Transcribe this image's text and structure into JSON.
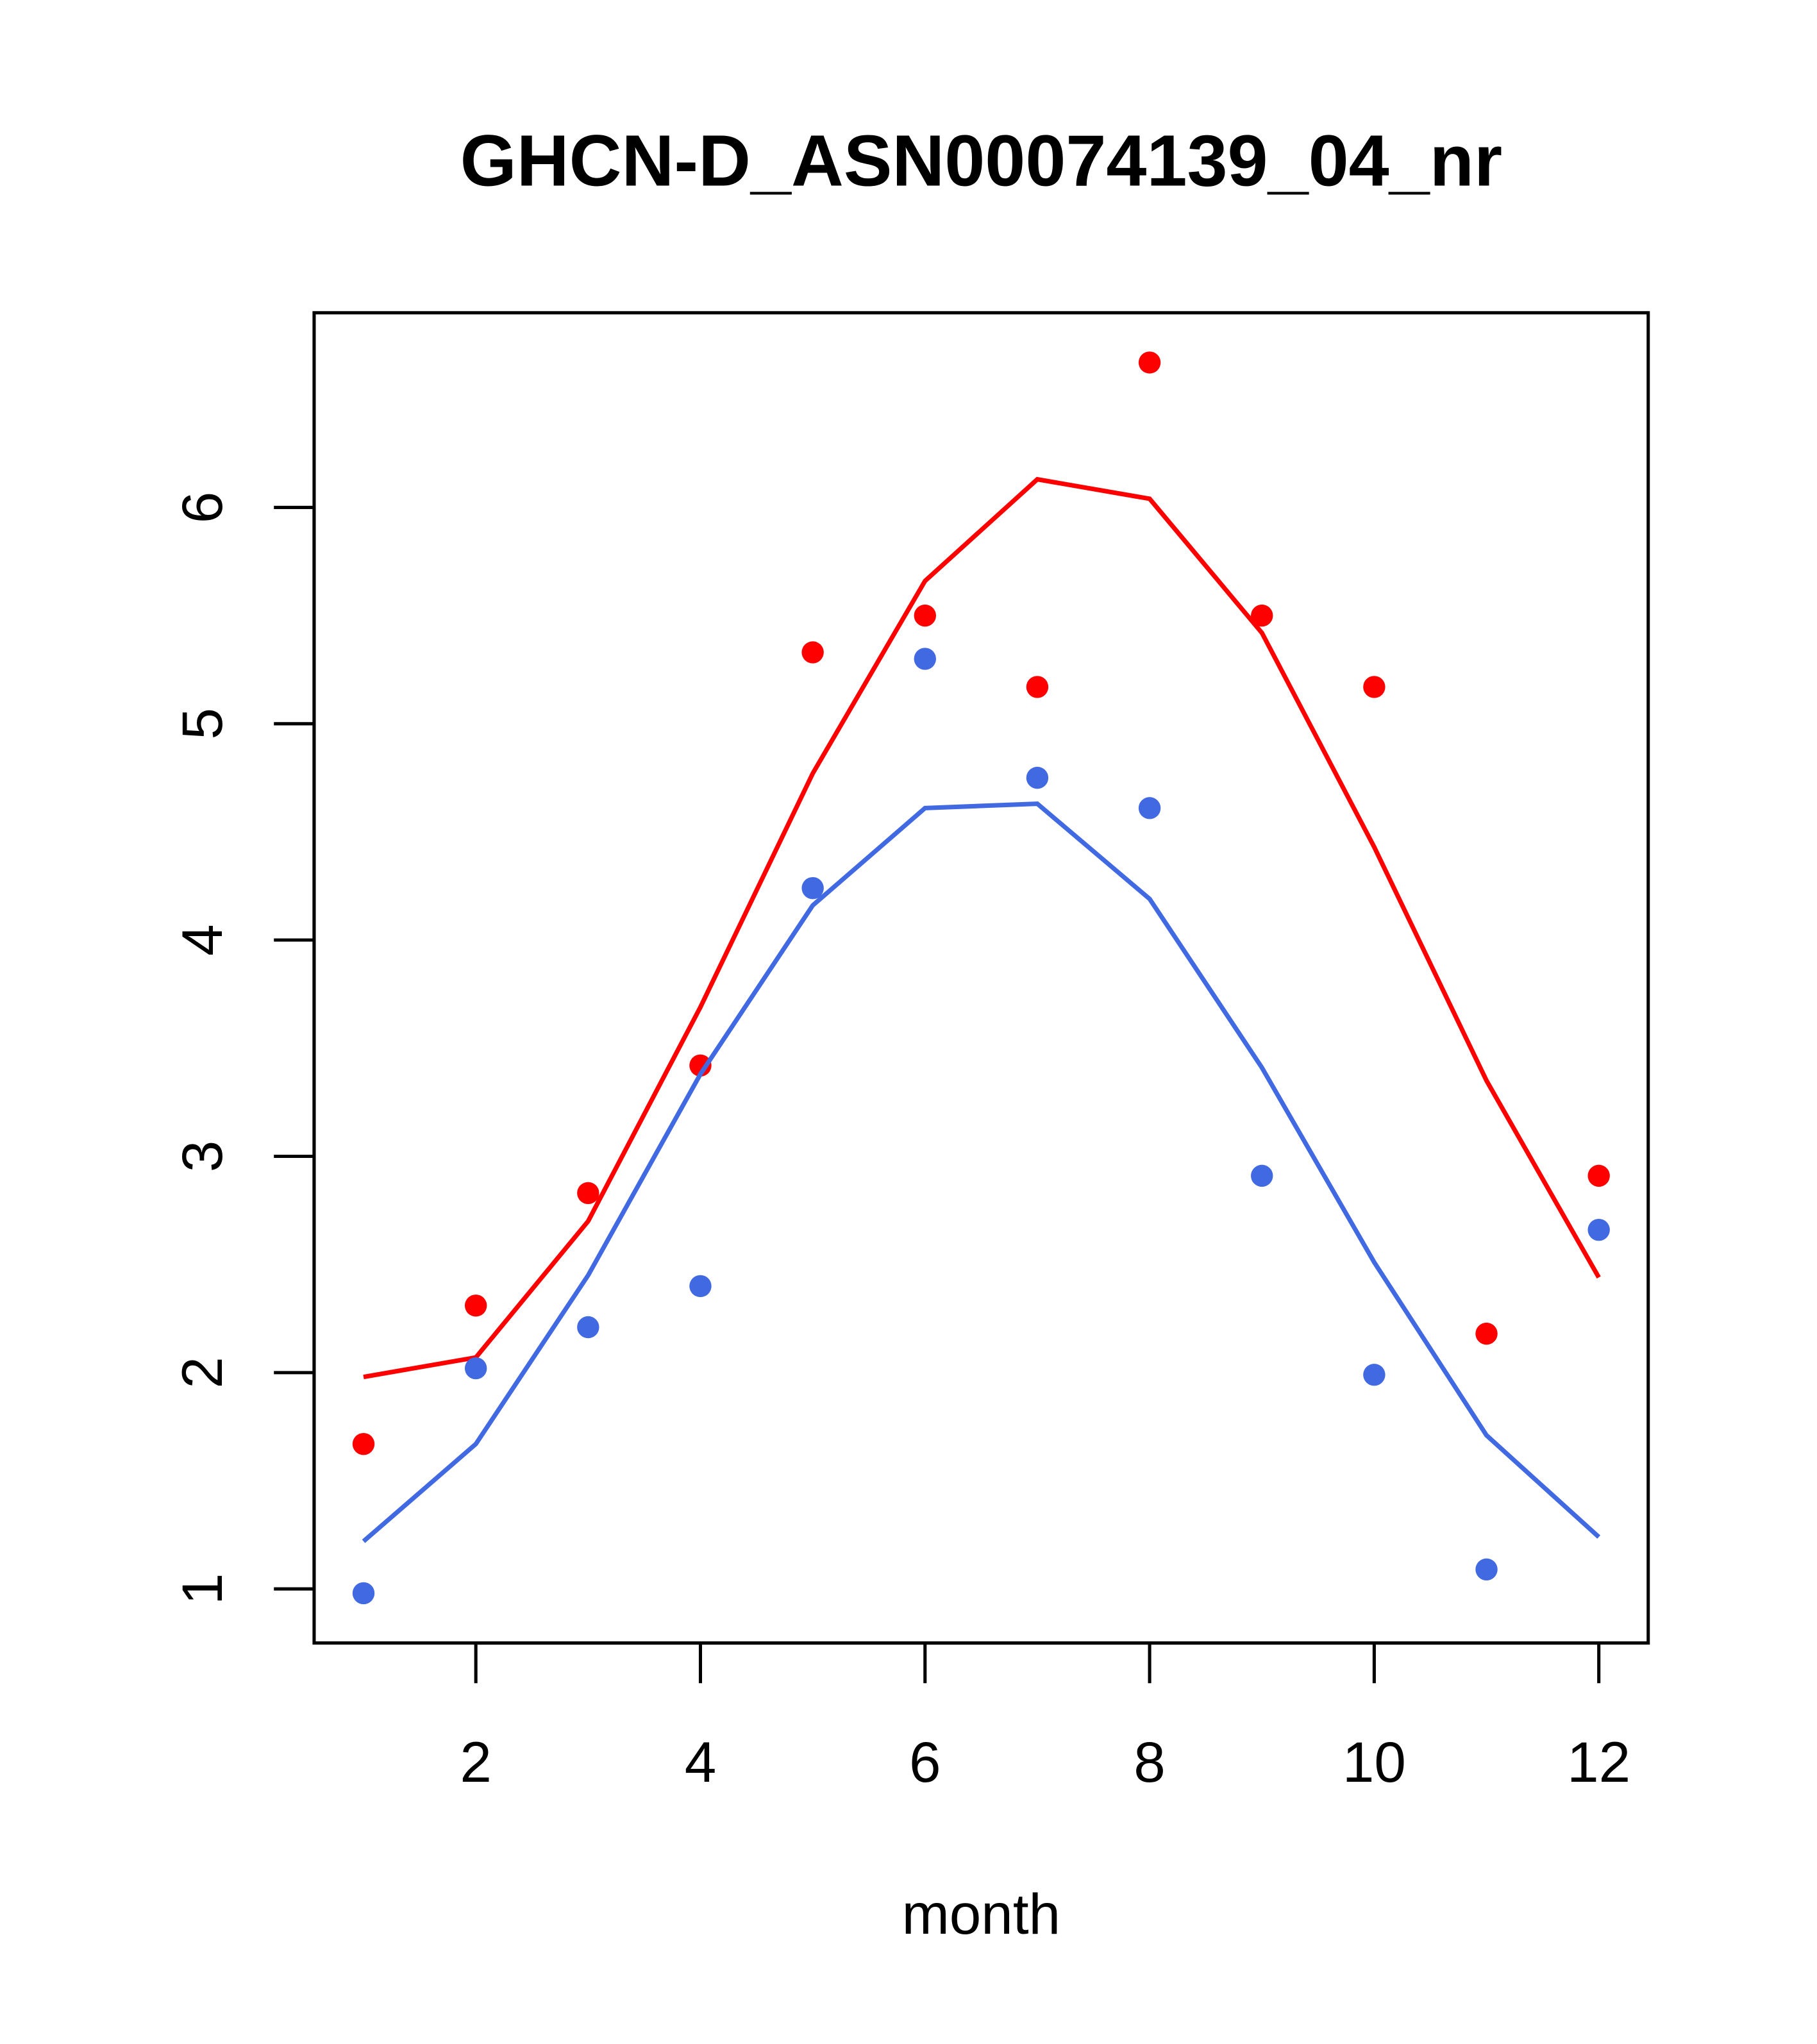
{
  "chart_data": {
    "type": "scatter",
    "title": "GHCN-D_ASN00074139_04_nr",
    "xlabel": "month",
    "ylabel": "",
    "xlim": [
      0.56,
      12.44
    ],
    "ylim": [
      0.75,
      6.9
    ],
    "x_ticks": [
      2,
      4,
      6,
      8,
      10,
      12
    ],
    "x_tick_labels": [
      "2",
      "4",
      "6",
      "8",
      "10",
      "12"
    ],
    "y_ticks": [
      1,
      2,
      3,
      4,
      5,
      6
    ],
    "y_tick_labels": [
      "1",
      "2",
      "3",
      "4",
      "5",
      "6"
    ],
    "grid": false,
    "x": [
      1,
      2,
      3,
      4,
      5,
      6,
      7,
      8,
      9,
      10,
      11,
      12
    ],
    "series": [
      {
        "name": "red points",
        "kind": "points",
        "color": "#ff0000",
        "values": [
          1.67,
          2.31,
          2.83,
          3.42,
          5.33,
          5.5,
          5.17,
          6.67,
          5.5,
          5.17,
          2.18,
          2.91
        ]
      },
      {
        "name": "red line",
        "kind": "line",
        "color": "#ff0000",
        "values": [
          1.98,
          2.07,
          2.7,
          3.69,
          4.77,
          5.66,
          6.13,
          6.04,
          5.42,
          4.43,
          3.35,
          2.44
        ]
      },
      {
        "name": "blue points",
        "kind": "points",
        "color": "#4169e1",
        "values": [
          0.98,
          2.02,
          2.21,
          2.4,
          4.24,
          5.3,
          4.75,
          4.61,
          2.91,
          1.99,
          1.09,
          2.66
        ]
      },
      {
        "name": "blue line",
        "kind": "line",
        "color": "#4169e1",
        "values": [
          1.22,
          1.67,
          2.45,
          3.38,
          4.16,
          4.61,
          4.63,
          4.19,
          3.41,
          2.51,
          1.71,
          1.24
        ]
      }
    ]
  }
}
